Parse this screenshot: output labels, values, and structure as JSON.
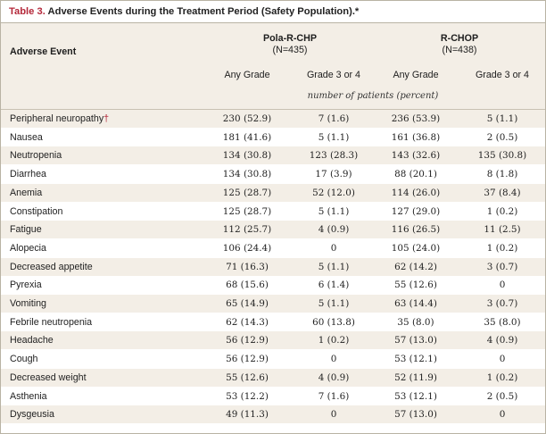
{
  "title": {
    "number": "Table 3.",
    "text": "Adverse Events during the Treatment Period (Safety Population).*"
  },
  "header": {
    "event_label": "Adverse Event",
    "group1": {
      "name": "Pola-R-CHP",
      "n": "(N=435)"
    },
    "group2": {
      "name": "R-CHOP",
      "n": "(N=438)"
    },
    "col_any": "Any Grade",
    "col_grade34": "Grade 3 or 4",
    "unit": "number of patients (percent)"
  },
  "rows": [
    {
      "event": "Peripheral neuropathy",
      "mark": "†",
      "p_any": "230 (52.9)",
      "p_g34": "7 (1.6)",
      "r_any": "236 (53.9)",
      "r_g34": "5 (1.1)"
    },
    {
      "event": "Nausea",
      "mark": "",
      "p_any": "181 (41.6)",
      "p_g34": "5 (1.1)",
      "r_any": "161 (36.8)",
      "r_g34": "2 (0.5)"
    },
    {
      "event": "Neutropenia",
      "mark": "",
      "p_any": "134 (30.8)",
      "p_g34": "123 (28.3)",
      "r_any": "143 (32.6)",
      "r_g34": "135 (30.8)"
    },
    {
      "event": "Diarrhea",
      "mark": "",
      "p_any": "134 (30.8)",
      "p_g34": "17 (3.9)",
      "r_any": "88 (20.1)",
      "r_g34": "8 (1.8)"
    },
    {
      "event": "Anemia",
      "mark": "",
      "p_any": "125 (28.7)",
      "p_g34": "52 (12.0)",
      "r_any": "114 (26.0)",
      "r_g34": "37 (8.4)"
    },
    {
      "event": "Constipation",
      "mark": "",
      "p_any": "125 (28.7)",
      "p_g34": "5 (1.1)",
      "r_any": "127 (29.0)",
      "r_g34": "1 (0.2)"
    },
    {
      "event": "Fatigue",
      "mark": "",
      "p_any": "112 (25.7)",
      "p_g34": "4 (0.9)",
      "r_any": "116 (26.5)",
      "r_g34": "11 (2.5)"
    },
    {
      "event": "Alopecia",
      "mark": "",
      "p_any": "106 (24.4)",
      "p_g34": "0",
      "r_any": "105 (24.0)",
      "r_g34": "1 (0.2)"
    },
    {
      "event": "Decreased appetite",
      "mark": "",
      "p_any": "71 (16.3)",
      "p_g34": "5 (1.1)",
      "r_any": "62 (14.2)",
      "r_g34": "3 (0.7)"
    },
    {
      "event": "Pyrexia",
      "mark": "",
      "p_any": "68 (15.6)",
      "p_g34": "6 (1.4)",
      "r_any": "55 (12.6)",
      "r_g34": "0"
    },
    {
      "event": "Vomiting",
      "mark": "",
      "p_any": "65 (14.9)",
      "p_g34": "5 (1.1)",
      "r_any": "63 (14.4)",
      "r_g34": "3 (0.7)"
    },
    {
      "event": "Febrile neutropenia",
      "mark": "",
      "p_any": "62 (14.3)",
      "p_g34": "60 (13.8)",
      "r_any": "35 (8.0)",
      "r_g34": "35 (8.0)"
    },
    {
      "event": "Headache",
      "mark": "",
      "p_any": "56 (12.9)",
      "p_g34": "1 (0.2)",
      "r_any": "57 (13.0)",
      "r_g34": "4 (0.9)"
    },
    {
      "event": "Cough",
      "mark": "",
      "p_any": "56 (12.9)",
      "p_g34": "0",
      "r_any": "53 (12.1)",
      "r_g34": "0"
    },
    {
      "event": "Decreased weight",
      "mark": "",
      "p_any": "55 (12.6)",
      "p_g34": "4 (0.9)",
      "r_any": "52 (11.9)",
      "r_g34": "1 (0.2)"
    },
    {
      "event": "Asthenia",
      "mark": "",
      "p_any": "53 (12.2)",
      "p_g34": "7 (1.6)",
      "r_any": "53 (12.1)",
      "r_g34": "2 (0.5)"
    },
    {
      "event": "Dysgeusia",
      "mark": "",
      "p_any": "49 (11.3)",
      "p_g34": "0",
      "r_any": "57 (13.0)",
      "r_g34": "0"
    }
  ],
  "colors": {
    "accent": "#b4283a",
    "band": "#f3eee6",
    "border": "#b9b3a4"
  }
}
